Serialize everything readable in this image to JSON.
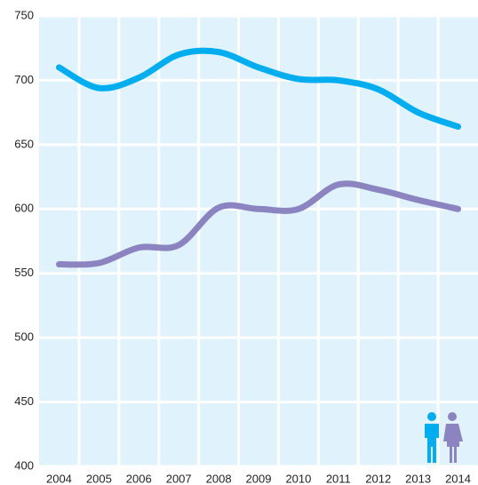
{
  "chart_data": {
    "type": "line",
    "categories": [
      "2004",
      "2005",
      "2006",
      "2007",
      "2008",
      "2009",
      "2010",
      "2011",
      "2012",
      "2013",
      "2014"
    ],
    "series": [
      {
        "color": "#00aeef",
        "values": [
          710,
          694,
          702,
          720,
          722,
          710,
          701,
          700,
          693,
          675,
          664
        ]
      },
      {
        "color": "#8b84c0",
        "values": [
          557,
          558,
          570,
          572,
          601,
          600,
          600,
          619,
          615,
          607,
          600
        ]
      }
    ],
    "ylim": [
      400,
      750
    ],
    "yticks": [
      400,
      450,
      500,
      550,
      600,
      650,
      700,
      750
    ],
    "grid": true
  }
}
